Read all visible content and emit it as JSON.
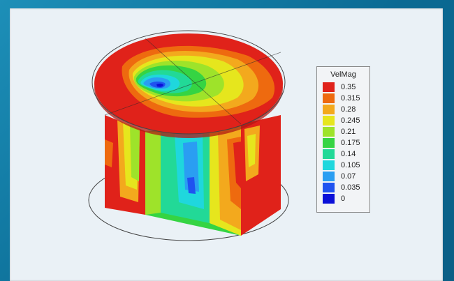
{
  "legend": {
    "title": "VelMag",
    "levels": [
      {
        "label": "0.35",
        "color": "#e0221a"
      },
      {
        "label": "0.315",
        "color": "#ee6a0f"
      },
      {
        "label": "0.28",
        "color": "#f3a91d"
      },
      {
        "label": "0.245",
        "color": "#e6e61d"
      },
      {
        "label": "0.21",
        "color": "#9ee32a"
      },
      {
        "label": "0.175",
        "color": "#35d443"
      },
      {
        "label": "0.14",
        "color": "#22d997"
      },
      {
        "label": "0.105",
        "color": "#1fd7dd"
      },
      {
        "label": "0.07",
        "color": "#2a9ef2"
      },
      {
        "label": "0.035",
        "color": "#1f52f0"
      },
      {
        "label": "0",
        "color": "#0b10d8"
      }
    ]
  }
}
